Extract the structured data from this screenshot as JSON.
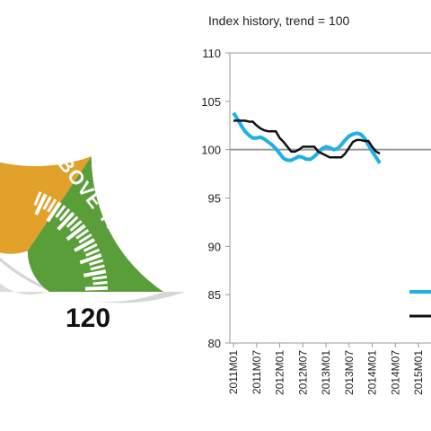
{
  "gauge": {
    "zone_label": "ABOVE TREND",
    "max_label": "120",
    "colors": {
      "amber": "#e2a12b",
      "green": "#5a9e3a",
      "rim": "#d7d7d7",
      "hub": "#dcdcdc"
    }
  },
  "chart_data": {
    "type": "line",
    "title": "Index history, trend = 100",
    "ylim": [
      80,
      110
    ],
    "yticks": [
      80,
      85,
      90,
      95,
      100,
      105,
      110
    ],
    "x_tick_labels": [
      "2011M01",
      "2011M07",
      "2012M01",
      "2012M07",
      "2013M01",
      "2013M07",
      "2014M01",
      "2014M07",
      "2015M01"
    ],
    "reference_line": 100,
    "series": [
      {
        "color": "#1fb0e6",
        "values": [
          103.8,
          103.2,
          102.5,
          101.9,
          101.5,
          101.2,
          101.2,
          101.3,
          101.1,
          100.8,
          100.5,
          100.1,
          99.6,
          99.1,
          98.9,
          98.9,
          99.1,
          99.3,
          99.2,
          99.0,
          99.0,
          99.3,
          99.7,
          100.1,
          100.3,
          100.2,
          100.0,
          100.1,
          100.5,
          101.0,
          101.4,
          101.6,
          101.7,
          101.6,
          101.2,
          100.5,
          99.8,
          99.2,
          98.6
        ]
      },
      {
        "color": "#111111",
        "values": [
          103.0,
          103.0,
          103.0,
          103.0,
          102.9,
          102.9,
          102.5,
          102.2,
          102.0,
          101.9,
          101.9,
          101.9,
          101.2,
          100.8,
          100.3,
          99.8,
          99.8,
          100.0,
          100.3,
          100.3,
          100.3,
          100.3,
          99.8,
          99.6,
          99.4,
          99.2,
          99.2,
          99.2,
          99.2,
          99.6,
          100.2,
          100.8,
          101.0,
          101.0,
          100.9,
          100.9,
          100.3,
          99.8,
          99.6
        ]
      }
    ]
  }
}
